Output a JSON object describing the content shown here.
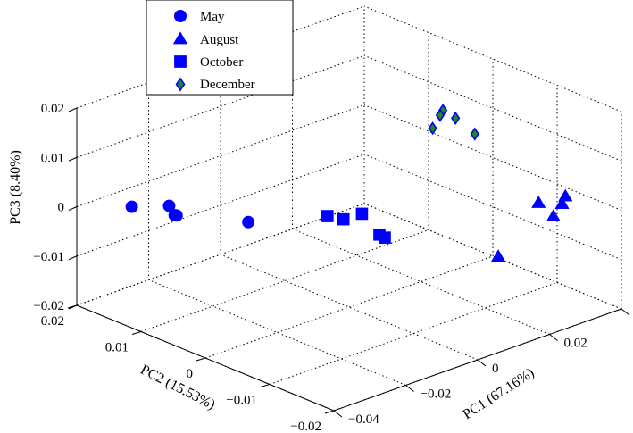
{
  "chart_data": {
    "type": "scatter",
    "view": "3d",
    "axes": {
      "x": {
        "label": "PC1 (67.16%)",
        "range": [
          -0.04,
          0.04
        ],
        "ticks": [
          -0.04,
          -0.02,
          0,
          0.02,
          0.04
        ],
        "tick_labels": [
          "−0.04",
          "−0.02",
          "0",
          "0.02",
          "0.04"
        ]
      },
      "y": {
        "label": "PC2 (15.53%)",
        "range": [
          -0.02,
          0.02
        ],
        "ticks": [
          -0.02,
          -0.01,
          0,
          0.01,
          0.02
        ],
        "tick_labels": [
          "−0.02",
          "−0.01",
          "0",
          "0.01",
          "0.02"
        ]
      },
      "z": {
        "label": "PC3 (8.40%)",
        "range": [
          -0.02,
          0.02
        ],
        "ticks": [
          -0.02,
          -0.01,
          0,
          0.01,
          0.02
        ],
        "tick_labels": [
          "−0.02",
          "−0.01",
          "0",
          "0.01",
          "0.02"
        ]
      }
    },
    "grid": true,
    "legend_position": "top-left",
    "series": [
      {
        "name": "May",
        "marker": "circle",
        "color": "#0000ff",
        "points": [
          [
            -0.039,
            0.012,
            0.004
          ],
          [
            -0.031,
            0.0095,
            0.0015
          ],
          [
            -0.0295,
            0.0115,
            0.002
          ],
          [
            -0.0285,
            0.0112,
            0.0
          ],
          [
            -0.02,
            0.0045,
            0.0
          ]
        ]
      },
      {
        "name": "August",
        "marker": "triangle",
        "color": "#0000ff",
        "points": [
          [
            0.012,
            -0.0165,
            -0.004
          ],
          [
            0.025,
            -0.0155,
            0.003
          ],
          [
            0.0268,
            -0.0168,
            0.0005
          ],
          [
            0.0285,
            -0.0172,
            0.0028
          ],
          [
            0.0305,
            -0.0166,
            0.0035
          ]
        ]
      },
      {
        "name": "October",
        "marker": "square",
        "color": "#0000ff",
        "points": [
          [
            -0.006,
            0.0,
            0.0
          ],
          [
            -0.003,
            -0.0008,
            -0.001
          ],
          [
            0.0,
            -0.002,
            0.0
          ],
          [
            -0.0005,
            -0.005,
            -0.0025
          ],
          [
            0.001,
            -0.005,
            -0.0035
          ]
        ]
      },
      {
        "name": "December",
        "marker": "diamond",
        "color": "#1a8a1a",
        "edge_color": "#0000ff",
        "points": [
          [
            0.0,
            -0.013,
            0.0232
          ],
          [
            0.0025,
            -0.0132,
            0.0263
          ],
          [
            0.0035,
            -0.0122,
            0.0245
          ],
          [
            0.006,
            -0.0132,
            0.0238
          ],
          [
            0.0085,
            -0.0148,
            0.0208
          ]
        ]
      }
    ]
  }
}
